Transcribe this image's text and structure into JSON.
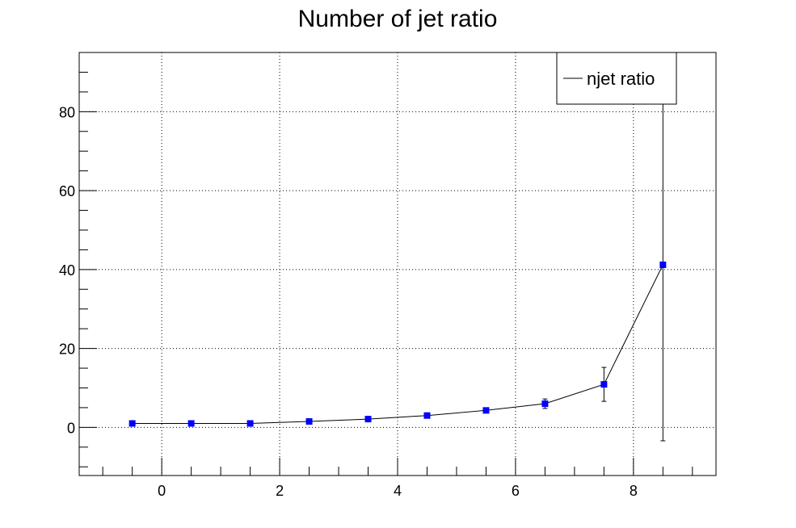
{
  "chart_data": {
    "type": "scatter",
    "title": "Number of jet ratio",
    "xlabel": "",
    "ylabel": "",
    "xlim": [
      -1.4,
      9.4
    ],
    "ylim": [
      -12.2,
      95
    ],
    "x_ticks": [
      0,
      2,
      4,
      6,
      8
    ],
    "y_ticks": [
      0,
      20,
      40,
      60,
      80
    ],
    "grid": true,
    "legend_position": "top-right",
    "series": [
      {
        "name": "njet ratio",
        "marker": "square",
        "marker_color": "#0000ff",
        "line_color": "#000000",
        "x": [
          -0.5,
          0.5,
          1.5,
          2.5,
          3.5,
          4.5,
          5.5,
          6.5,
          7.5,
          8.5
        ],
        "y": [
          1.0,
          1.0,
          1.0,
          1.5,
          2.1,
          3.0,
          4.3,
          6.0,
          10.9,
          41.2
        ],
        "yerr": [
          0.05,
          0.05,
          0.1,
          0.15,
          0.2,
          0.3,
          0.5,
          1.2,
          4.3,
          44.6
        ]
      }
    ]
  }
}
